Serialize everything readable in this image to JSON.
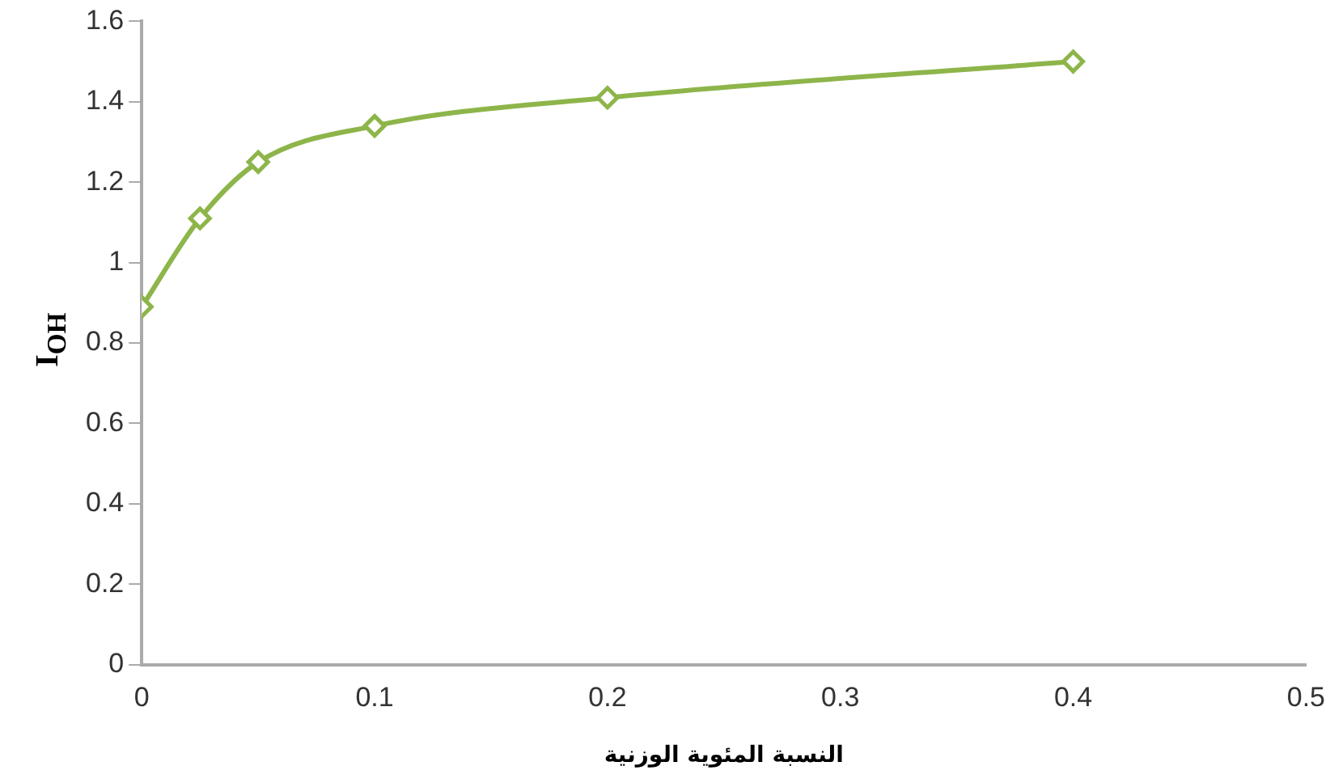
{
  "chart_data": {
    "type": "line",
    "xlabel": "النسبة المئوية الوزنية",
    "ylabel": "I$_{OH}$",
    "x": [
      0,
      0.025,
      0.05,
      0.1,
      0.2,
      0.4
    ],
    "series": [
      {
        "color": "#8db54a",
        "values": [
          0.89,
          1.11,
          1.25,
          1.34,
          1.41,
          1.5
        ]
      }
    ],
    "xlim": [
      0,
      0.5
    ],
    "xticks": [
      0,
      0.1,
      0.2,
      0.3,
      0.4,
      0.5
    ],
    "ylim": [
      0,
      1.6
    ],
    "yticks": [
      0,
      0.2,
      0.4,
      0.6,
      0.8,
      1,
      1.2,
      1.4,
      1.6
    ],
    "grid": false,
    "legend": false,
    "marker": "diamond",
    "line_style": "solid"
  }
}
